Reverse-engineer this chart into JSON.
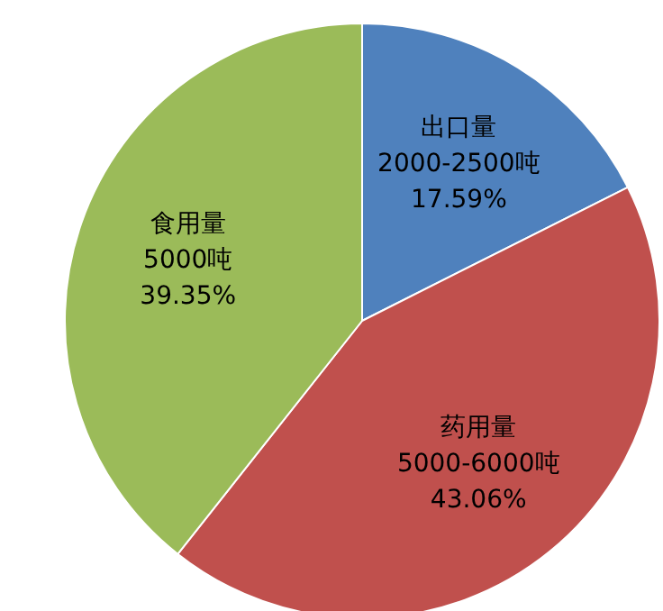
{
  "chart_data": {
    "type": "pie",
    "categories": [
      "出口量",
      "药用量",
      "食用量"
    ],
    "values": [
      17.59,
      43.06,
      39.35
    ],
    "colors": [
      "#4f81bd",
      "#c0504d",
      "#9bbb59"
    ],
    "value_labels": [
      "17.59%",
      "43.06%",
      "39.35%"
    ],
    "annotations": [
      {
        "text": "2000-2500吨",
        "x": "出口量"
      },
      {
        "text": "5000-6000吨",
        "x": "药用量"
      },
      {
        "text": "5000吨",
        "x": "食用量"
      }
    ]
  }
}
